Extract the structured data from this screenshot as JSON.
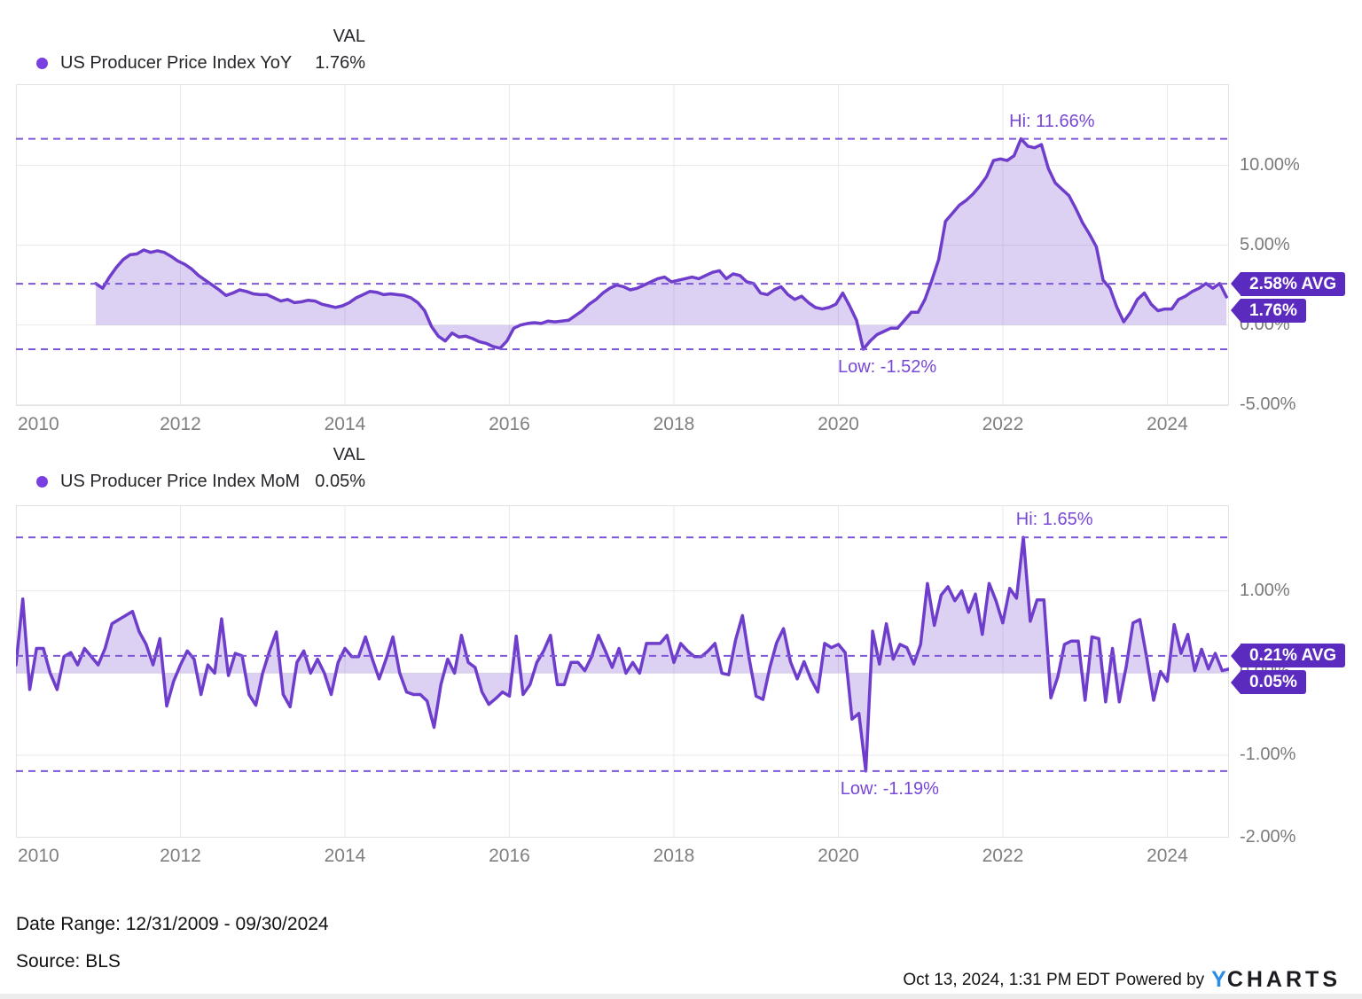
{
  "legend1": {
    "label": "US Producer Price Index YoY",
    "val_header": "VAL",
    "value": "1.76%"
  },
  "legend2": {
    "label": "US Producer Price Index MoM",
    "val_header": "VAL",
    "value": "0.05%"
  },
  "footer": {
    "date_range": "Date Range: 12/31/2009 - 09/30/2024",
    "source": "Source: BLS",
    "timestamp": "Oct 13, 2024, 1:31 PM EDT",
    "powered_by": "Powered by",
    "brand_y": "Y",
    "brand_rest": "CHARTS"
  },
  "colors": {
    "line": "#6f3dcb",
    "legend_dot": "#7a3fe3",
    "area_fill": "rgba(111,61,203,0.24)",
    "dashed_line": "#7e57d6",
    "hilow_text": "#7747d6",
    "badge_bg": "#5b2abe",
    "badge_text": "#ffffff",
    "tick_text": "#7a7a7a",
    "gridline": "#e9e9e9",
    "plot_border": "#e2e2e2",
    "brand_blue": "#2b8ce4"
  },
  "chart_data": [
    {
      "type": "area",
      "name": "ppi-yoy",
      "title": "US Producer Price Index YoY",
      "unit": "%",
      "frequency": "monthly",
      "start_month": "2010-12",
      "end_month": "2024-09",
      "hi": {
        "label": "Hi: 11.66%",
        "value": 11.66
      },
      "low": {
        "label": "Low: -1.52%",
        "value": -1.52
      },
      "avg": {
        "label": "2.58% AVG",
        "value": 2.58
      },
      "last": {
        "label": "1.76%",
        "value": 1.76
      },
      "ylim": [
        -5.07,
        15.08
      ],
      "y_ticks": [
        {
          "value": 10,
          "label": "10.00%"
        },
        {
          "value": 5,
          "label": "5.00%"
        },
        {
          "value": 0,
          "label": "0.00%"
        },
        {
          "value": -5,
          "label": "-5.00%"
        }
      ],
      "x_ticks": [
        "2010",
        "2012",
        "2014",
        "2016",
        "2018",
        "2020",
        "2022",
        "2024"
      ],
      "values": [
        2.6,
        2.3,
        3.0,
        3.6,
        4.1,
        4.4,
        4.45,
        4.7,
        4.55,
        4.65,
        4.55,
        4.3,
        4.0,
        3.8,
        3.5,
        3.1,
        2.8,
        2.5,
        2.2,
        1.85,
        2.0,
        2.2,
        2.1,
        1.95,
        1.9,
        1.9,
        1.7,
        1.5,
        1.6,
        1.4,
        1.45,
        1.55,
        1.5,
        1.3,
        1.2,
        1.1,
        1.2,
        1.4,
        1.7,
        1.9,
        2.1,
        2.05,
        1.9,
        1.95,
        1.9,
        1.85,
        1.7,
        1.4,
        0.9,
        -0.1,
        -0.7,
        -1.0,
        -0.5,
        -0.75,
        -0.7,
        -0.85,
        -1.05,
        -1.15,
        -1.35,
        -1.45,
        -1.0,
        -0.2,
        0.0,
        0.1,
        0.15,
        0.1,
        0.25,
        0.2,
        0.25,
        0.3,
        0.6,
        0.9,
        1.3,
        1.6,
        2.0,
        2.3,
        2.5,
        2.4,
        2.2,
        2.3,
        2.5,
        2.7,
        2.9,
        3.0,
        2.7,
        2.8,
        2.9,
        3.0,
        2.9,
        3.1,
        3.3,
        3.4,
        2.9,
        3.2,
        3.1,
        2.7,
        2.6,
        2.0,
        1.9,
        2.2,
        2.4,
        1.9,
        1.6,
        1.8,
        1.4,
        1.1,
        1.0,
        1.1,
        1.3,
        2.0,
        1.2,
        0.3,
        -1.52,
        -1.0,
        -0.6,
        -0.4,
        -0.2,
        -0.2,
        0.3,
        0.8,
        0.8,
        1.6,
        2.8,
        4.1,
        6.5,
        7.0,
        7.5,
        7.8,
        8.2,
        8.7,
        9.3,
        10.3,
        10.4,
        10.3,
        10.6,
        11.66,
        11.2,
        11.1,
        11.3,
        9.8,
        8.9,
        8.5,
        8.1,
        7.3,
        6.4,
        5.7,
        4.9,
        2.8,
        2.3,
        1.1,
        0.2,
        0.8,
        1.6,
        2.0,
        1.3,
        0.9,
        1.0,
        1.0,
        1.6,
        1.8,
        2.1,
        2.3,
        2.6,
        2.3,
        2.6,
        1.76
      ]
    },
    {
      "type": "area",
      "name": "ppi-mom",
      "title": "US Producer Price Index MoM",
      "unit": "%",
      "frequency": "monthly",
      "start_month": "2009-12",
      "end_month": "2024-09",
      "hi": {
        "label": "Hi: 1.65%",
        "value": 1.65
      },
      "low": {
        "label": "Low: -1.19%",
        "value": -1.19
      },
      "avg": {
        "label": "0.21% AVG",
        "value": 0.21
      },
      "last": {
        "label": "0.05%",
        "value": 0.05
      },
      "ylim": [
        -2.0,
        2.04
      ],
      "y_ticks": [
        {
          "value": 1,
          "label": "1.00%"
        },
        {
          "value": 0,
          "label": "0.00%"
        },
        {
          "value": -1,
          "label": "-1.00%"
        },
        {
          "value": -2,
          "label": "-2.00%"
        }
      ],
      "x_ticks": [
        "2010",
        "2012",
        "2014",
        "2016",
        "2018",
        "2020",
        "2022",
        "2024"
      ],
      "values": [
        0.1,
        0.9,
        -0.2,
        0.3,
        0.3,
        0.0,
        -0.2,
        0.2,
        0.25,
        0.1,
        0.3,
        0.2,
        0.1,
        0.3,
        0.6,
        0.65,
        0.7,
        0.75,
        0.5,
        0.35,
        0.1,
        0.42,
        -0.4,
        -0.1,
        0.1,
        0.27,
        0.17,
        -0.26,
        0.1,
        0.0,
        0.66,
        -0.03,
        0.24,
        0.21,
        -0.26,
        -0.39,
        0.0,
        0.27,
        0.5,
        -0.26,
        -0.41,
        0.13,
        0.27,
        0.0,
        0.17,
        0.0,
        -0.26,
        0.13,
        0.3,
        0.2,
        0.2,
        0.44,
        0.17,
        -0.07,
        0.17,
        0.44,
        0.0,
        -0.23,
        -0.26,
        -0.26,
        -0.34,
        -0.66,
        -0.14,
        0.17,
        0.0,
        0.46,
        0.13,
        0.07,
        -0.23,
        -0.38,
        -0.31,
        -0.23,
        -0.28,
        0.45,
        -0.26,
        -0.14,
        0.13,
        0.27,
        0.46,
        -0.14,
        -0.14,
        0.13,
        0.13,
        0.03,
        0.2,
        0.46,
        0.27,
        0.07,
        0.3,
        0.0,
        0.13,
        0.0,
        0.36,
        0.36,
        0.36,
        0.46,
        0.13,
        0.36,
        0.27,
        0.2,
        0.2,
        0.27,
        0.36,
        0.0,
        -0.02,
        0.4,
        0.7,
        0.17,
        -0.28,
        -0.32,
        0.07,
        0.37,
        0.54,
        0.14,
        -0.07,
        0.14,
        -0.07,
        -0.23,
        0.36,
        0.31,
        0.35,
        0.25,
        -0.56,
        -0.49,
        -1.19,
        0.51,
        0.11,
        0.6,
        0.17,
        0.35,
        0.31,
        0.11,
        0.35,
        1.09,
        0.58,
        0.95,
        1.05,
        0.88,
        1.0,
        0.74,
        0.96,
        0.47,
        1.09,
        0.88,
        0.61,
        1.03,
        0.91,
        1.65,
        0.63,
        0.89,
        0.89,
        -0.3,
        -0.05,
        0.35,
        0.39,
        0.39,
        -0.33,
        0.44,
        0.42,
        -0.35,
        0.3,
        -0.35,
        0.08,
        0.61,
        0.65,
        0.18,
        -0.33,
        0.02,
        -0.1,
        0.59,
        0.24,
        0.47,
        0.03,
        0.29,
        0.05,
        0.24,
        0.03,
        0.05
      ]
    }
  ]
}
